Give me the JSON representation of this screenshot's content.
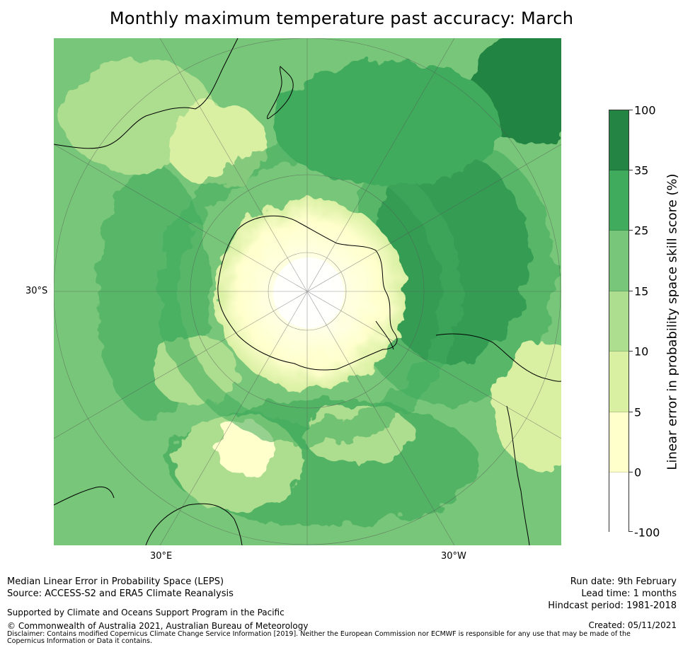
{
  "title": "Monthly maximum temperature past accuracy: March",
  "map": {
    "projection": "South polar stereographic",
    "lat_labels": [
      "30°S"
    ],
    "lon_labels": [
      "30°E",
      "30°W"
    ],
    "palette": {
      "white": "#ffffff",
      "pale_yellow": "#ffffcc",
      "light_yellow_green": "#d9f0a3",
      "light_green": "#addd8e",
      "mid_green": "#78c679",
      "green": "#41ab5d",
      "dark_green": "#238443"
    }
  },
  "colorbar": {
    "label": "Linear error in probability space skill score (%)",
    "ticks": [
      "100",
      "35",
      "25",
      "15",
      "10",
      "5",
      "0",
      "-100"
    ],
    "colors": [
      "#238443",
      "#41ab5d",
      "#78c679",
      "#addd8e",
      "#d9f0a3",
      "#ffffcc",
      "#ffffff"
    ]
  },
  "footer": {
    "line1": "Median Linear Error in Probability Space (LEPS)",
    "line2": "Source: ACCESS-S2 and ERA5 Climate Reanalysis",
    "support": "Supported by Climate and Oceans Support Program in the Pacific",
    "copyright": "© Commonwealth of Australia 2021, Australian Bureau of Meteorology",
    "run_date": "Run date: 9th February",
    "lead_time": "Lead time: 1 months",
    "hindcast": "Hindcast period: 1981-2018",
    "created": "Created: 05/11/2021",
    "disclaimer": "Disclaimer: Contains modified Copernicus Climate Change Service Information [2019]. Neither the European Commission nor ECMWF is responsible for any use that may be made of the Copernicus Information or Data it contains."
  }
}
